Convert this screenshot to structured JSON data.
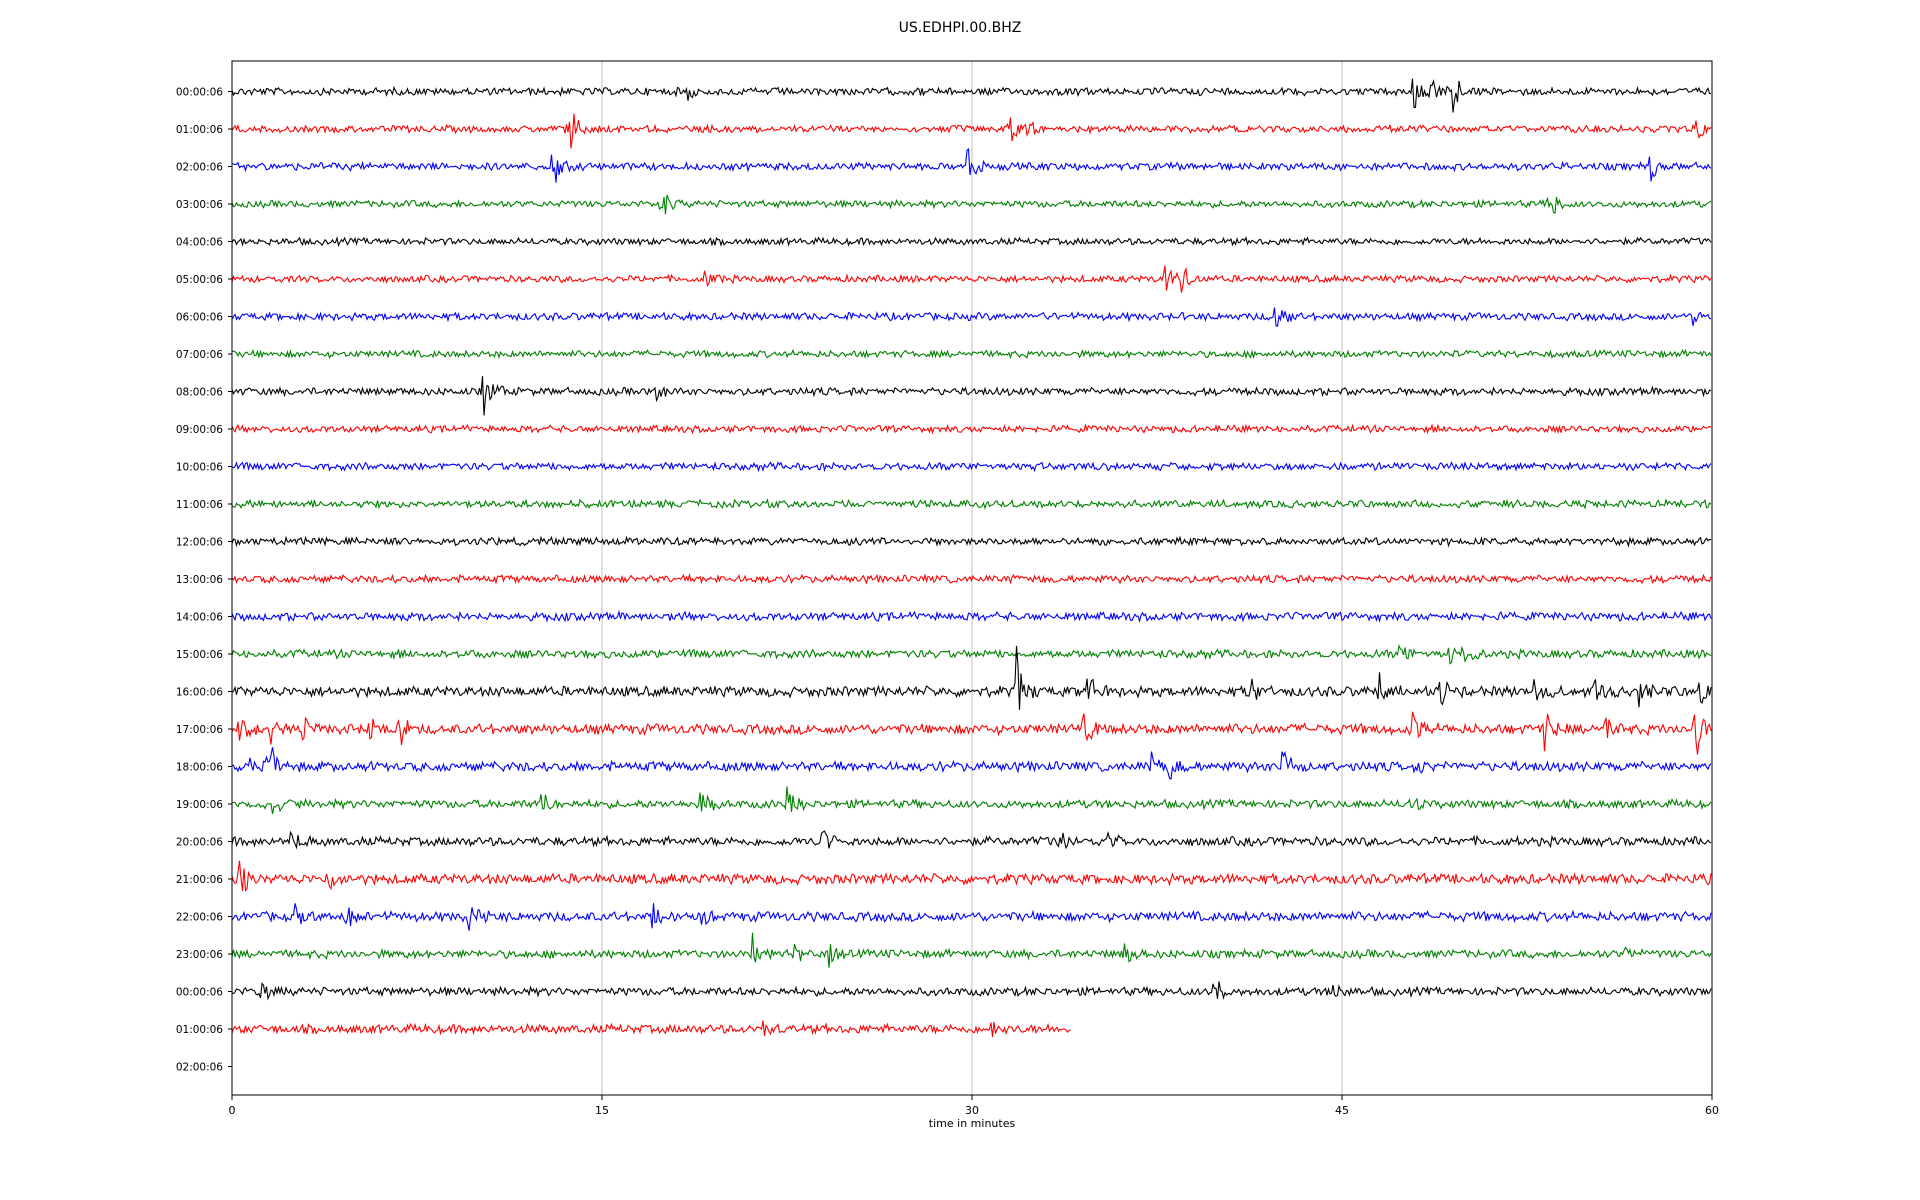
{
  "chart_data": {
    "type": "line",
    "title": "US.EDHPI.00.BHZ",
    "xlabel": "time in minutes",
    "ylabel": "",
    "xlim": [
      0,
      60
    ],
    "xticks": [
      0,
      15,
      30,
      45,
      60
    ],
    "grid": {
      "x": true,
      "y": false
    },
    "colors": [
      "#000000",
      "#ff0000",
      "#0000ff",
      "#008000"
    ],
    "row_labels": [
      "00:00:06",
      "01:00:06",
      "02:00:06",
      "03:00:06",
      "04:00:06",
      "05:00:06",
      "06:00:06",
      "07:00:06",
      "08:00:06",
      "09:00:06",
      "10:00:06",
      "11:00:06",
      "12:00:06",
      "13:00:06",
      "14:00:06",
      "15:00:06",
      "16:00:06",
      "17:00:06",
      "18:00:06",
      "19:00:06",
      "20:00:06",
      "21:00:06",
      "22:00:06",
      "23:00:06",
      "00:00:06",
      "01:00:06",
      "02:00:06"
    ],
    "traces": [
      {
        "row": 0,
        "color": "#000000",
        "end": 60,
        "noise": 0.22,
        "events": [
          {
            "t": 47.9,
            "a": 1.6
          },
          {
            "t": 48.6,
            "a": 0.8
          },
          {
            "t": 49.5,
            "a": 1.2
          },
          {
            "t": 18.5,
            "a": 0.5
          }
        ]
      },
      {
        "row": 1,
        "color": "#ff0000",
        "end": 60,
        "noise": 0.2,
        "events": [
          {
            "t": 13.5,
            "a": 1.3
          },
          {
            "t": 13.7,
            "a": 1.0
          },
          {
            "t": 31.5,
            "a": 1.1
          },
          {
            "t": 32.2,
            "a": 1.0
          },
          {
            "t": 59.4,
            "a": 0.8
          }
        ]
      },
      {
        "row": 2,
        "color": "#0000ff",
        "end": 60,
        "noise": 0.22,
        "events": [
          {
            "t": 13.0,
            "a": 1.6
          },
          {
            "t": 29.8,
            "a": 1.7
          },
          {
            "t": 57.5,
            "a": 1.2
          }
        ]
      },
      {
        "row": 3,
        "color": "#008000",
        "end": 60,
        "noise": 0.2,
        "events": [
          {
            "t": 17.4,
            "a": 0.9
          },
          {
            "t": 53.4,
            "a": 1.0
          }
        ]
      },
      {
        "row": 4,
        "color": "#000000",
        "end": 60,
        "noise": 0.2,
        "events": []
      },
      {
        "row": 5,
        "color": "#ff0000",
        "end": 60,
        "noise": 0.2,
        "events": [
          {
            "t": 19.1,
            "a": 0.6
          },
          {
            "t": 37.8,
            "a": 1.2
          },
          {
            "t": 38.5,
            "a": 1.0
          }
        ]
      },
      {
        "row": 6,
        "color": "#0000ff",
        "end": 60,
        "noise": 0.22,
        "events": [
          {
            "t": 42.3,
            "a": 1.1
          },
          {
            "t": 59.2,
            "a": 0.5
          }
        ]
      },
      {
        "row": 7,
        "color": "#008000",
        "end": 60,
        "noise": 0.2,
        "events": []
      },
      {
        "row": 8,
        "color": "#000000",
        "end": 60,
        "noise": 0.22,
        "events": [
          {
            "t": 10.2,
            "a": 1.6
          },
          {
            "t": 17.1,
            "a": 0.6
          }
        ]
      },
      {
        "row": 9,
        "color": "#ff0000",
        "end": 60,
        "noise": 0.2,
        "events": []
      },
      {
        "row": 10,
        "color": "#0000ff",
        "end": 60,
        "noise": 0.22,
        "events": []
      },
      {
        "row": 11,
        "color": "#008000",
        "end": 60,
        "noise": 0.22,
        "events": []
      },
      {
        "row": 12,
        "color": "#000000",
        "end": 60,
        "noise": 0.22,
        "events": []
      },
      {
        "row": 13,
        "color": "#ff0000",
        "end": 60,
        "noise": 0.22,
        "events": []
      },
      {
        "row": 14,
        "color": "#0000ff",
        "end": 60,
        "noise": 0.24,
        "events": []
      },
      {
        "row": 15,
        "color": "#008000",
        "end": 60,
        "noise": 0.24,
        "events": [
          {
            "t": 47.2,
            "a": 1.3
          },
          {
            "t": 49.3,
            "a": 0.9
          },
          {
            "t": 50.0,
            "a": 0.8
          }
        ]
      },
      {
        "row": 16,
        "color": "#000000",
        "end": 60,
        "noise": 0.3,
        "events": [
          {
            "t": 31.8,
            "a": 2.5
          },
          {
            "t": 34.6,
            "a": 1.2
          },
          {
            "t": 41.3,
            "a": 1.1
          },
          {
            "t": 46.5,
            "a": 0.9
          },
          {
            "t": 49.0,
            "a": 0.8
          },
          {
            "t": 52.8,
            "a": 0.9
          },
          {
            "t": 55.2,
            "a": 1.0
          },
          {
            "t": 57.0,
            "a": 1.0
          },
          {
            "t": 59.5,
            "a": 0.7
          }
        ]
      },
      {
        "row": 17,
        "color": "#ff0000",
        "end": 60,
        "noise": 0.3,
        "events": [
          {
            "t": 0.3,
            "a": 1.1
          },
          {
            "t": 1.5,
            "a": 0.8
          },
          {
            "t": 2.8,
            "a": 0.8
          },
          {
            "t": 5.5,
            "a": 0.7
          },
          {
            "t": 6.8,
            "a": 0.9
          },
          {
            "t": 34.5,
            "a": 1.0
          },
          {
            "t": 47.8,
            "a": 0.8
          },
          {
            "t": 53.2,
            "a": 1.1
          },
          {
            "t": 55.7,
            "a": 1.0
          },
          {
            "t": 59.3,
            "a": 2.0
          }
        ]
      },
      {
        "row": 18,
        "color": "#0000ff",
        "end": 60,
        "noise": 0.28,
        "events": [
          {
            "t": 0.5,
            "a": 1.2
          },
          {
            "t": 1.2,
            "a": 1.3
          },
          {
            "t": 1.6,
            "a": 0.9
          },
          {
            "t": 37.2,
            "a": 0.8
          },
          {
            "t": 38.0,
            "a": 0.6
          },
          {
            "t": 42.6,
            "a": 1.2
          },
          {
            "t": 48.0,
            "a": 0.5
          }
        ]
      },
      {
        "row": 19,
        "color": "#008000",
        "end": 60,
        "noise": 0.24,
        "events": [
          {
            "t": 1.6,
            "a": 0.9
          },
          {
            "t": 12.4,
            "a": 1.1
          },
          {
            "t": 19.0,
            "a": 0.8
          },
          {
            "t": 22.5,
            "a": 1.0
          },
          {
            "t": 47.8,
            "a": 0.5
          }
        ]
      },
      {
        "row": 20,
        "color": "#000000",
        "end": 60,
        "noise": 0.26,
        "events": [
          {
            "t": 2.4,
            "a": 1.2
          },
          {
            "t": 23.9,
            "a": 0.9
          },
          {
            "t": 33.5,
            "a": 1.0
          },
          {
            "t": 35.5,
            "a": 0.6
          }
        ]
      },
      {
        "row": 21,
        "color": "#ff0000",
        "end": 60,
        "noise": 0.3,
        "events": [
          {
            "t": 0.3,
            "a": 1.3
          },
          {
            "t": 3.9,
            "a": 1.0
          }
        ]
      },
      {
        "row": 22,
        "color": "#0000ff",
        "end": 60,
        "noise": 0.28,
        "events": [
          {
            "t": 2.5,
            "a": 0.9
          },
          {
            "t": 4.6,
            "a": 1.0
          },
          {
            "t": 9.6,
            "a": 0.8
          },
          {
            "t": 17.0,
            "a": 0.9
          },
          {
            "t": 19.0,
            "a": 0.8
          }
        ]
      },
      {
        "row": 23,
        "color": "#008000",
        "end": 60,
        "noise": 0.24,
        "events": [
          {
            "t": 21.1,
            "a": 1.0
          },
          {
            "t": 22.8,
            "a": 0.6
          },
          {
            "t": 24.2,
            "a": 0.8
          },
          {
            "t": 36.1,
            "a": 1.0
          },
          {
            "t": 56.5,
            "a": 0.4
          }
        ]
      },
      {
        "row": 24,
        "color": "#000000",
        "end": 60,
        "noise": 0.24,
        "events": [
          {
            "t": 1.1,
            "a": 0.6
          },
          {
            "t": 39.8,
            "a": 0.9
          },
          {
            "t": 44.6,
            "a": 0.6
          }
        ]
      },
      {
        "row": 25,
        "color": "#ff0000",
        "end": 34.0,
        "noise": 0.26,
        "events": [
          {
            "t": 21.5,
            "a": 0.5
          },
          {
            "t": 30.8,
            "a": 0.5
          }
        ]
      }
    ]
  }
}
